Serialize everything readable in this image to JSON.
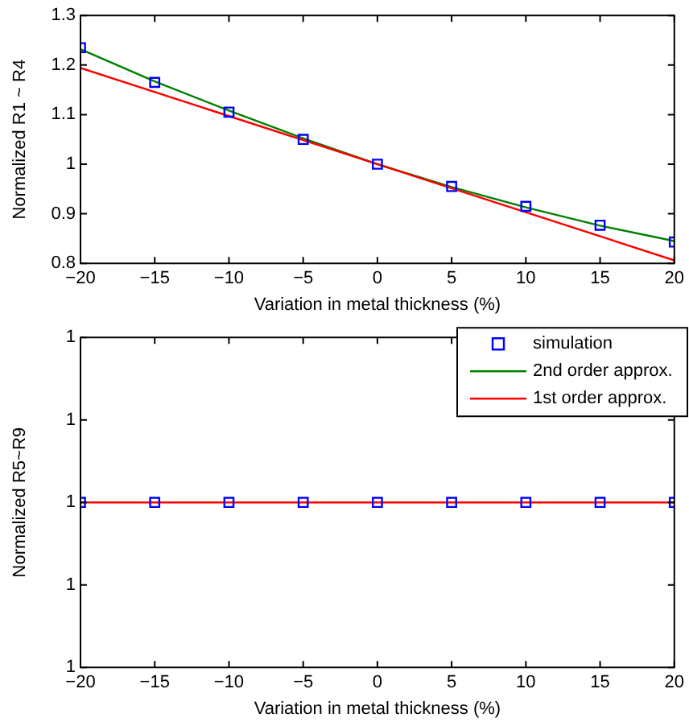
{
  "chart_data": [
    {
      "type": "line",
      "xlabel": "Variation in metal thickness (%)",
      "ylabel": "Normalized R1 ~ R4",
      "xlim": [
        -20,
        20
      ],
      "xticks": [
        -20,
        -15,
        -10,
        -5,
        0,
        5,
        10,
        15,
        20
      ],
      "ylim": [
        0.8,
        1.3
      ],
      "yticks": [
        0.8,
        0.9,
        1,
        1.1,
        1.2,
        1.3
      ],
      "grid": false,
      "legend": false,
      "series": [
        {
          "type": "scatter",
          "color": "#0000ff",
          "marker": "square",
          "x": [
            -20,
            -15,
            -10,
            -5,
            0,
            5,
            10,
            15,
            20
          ],
          "values": [
            1.235,
            1.165,
            1.105,
            1.05,
            1.0,
            0.955,
            0.915,
            0.877,
            0.843
          ]
        },
        {
          "type": "line",
          "color": "#008000",
          "marker": "none",
          "x": [
            -20,
            -15,
            -10,
            -5,
            0,
            5,
            10,
            15,
            20
          ],
          "values": [
            1.232,
            1.167,
            1.108,
            1.052,
            1.0,
            0.954,
            0.913,
            0.876,
            0.845
          ]
        },
        {
          "type": "line",
          "color": "#ff0000",
          "marker": "none",
          "x": [
            -20,
            20
          ],
          "values": [
            1.194,
            0.806
          ]
        }
      ]
    },
    {
      "type": "line",
      "xlabel": "Variation in metal thickness (%)",
      "ylabel": "Normalized R5~R9",
      "xlim": [
        -20,
        20
      ],
      "xticks": [
        -20,
        -15,
        -10,
        -5,
        0,
        5,
        10,
        15,
        20
      ],
      "ylim": [
        0.9998,
        1.0002
      ],
      "yticks": [
        {
          "value": 0.9998,
          "label": "1"
        },
        {
          "value": 0.9999,
          "label": "1"
        },
        {
          "value": 1,
          "label": "1"
        },
        {
          "value": 1.0001,
          "label": "1"
        },
        {
          "value": 1.0002,
          "label": "1"
        }
      ],
      "grid": false,
      "legend": "top right",
      "series": [
        {
          "type": "scatter",
          "name": "simulation",
          "color": "#0000ff",
          "marker": "square",
          "x": [
            -20,
            -15,
            -10,
            -5,
            0,
            5,
            10,
            15,
            20
          ],
          "values": [
            1,
            1,
            1,
            1,
            1,
            1,
            1,
            1,
            1
          ]
        },
        {
          "type": "line",
          "name": "2nd order approx.",
          "color": "#008000",
          "marker": "none"
        },
        {
          "type": "line",
          "name": "1st order approx.",
          "color": "#ff0000",
          "marker": "none",
          "x": [
            -20,
            20
          ],
          "values": [
            1,
            1
          ]
        }
      ]
    }
  ]
}
